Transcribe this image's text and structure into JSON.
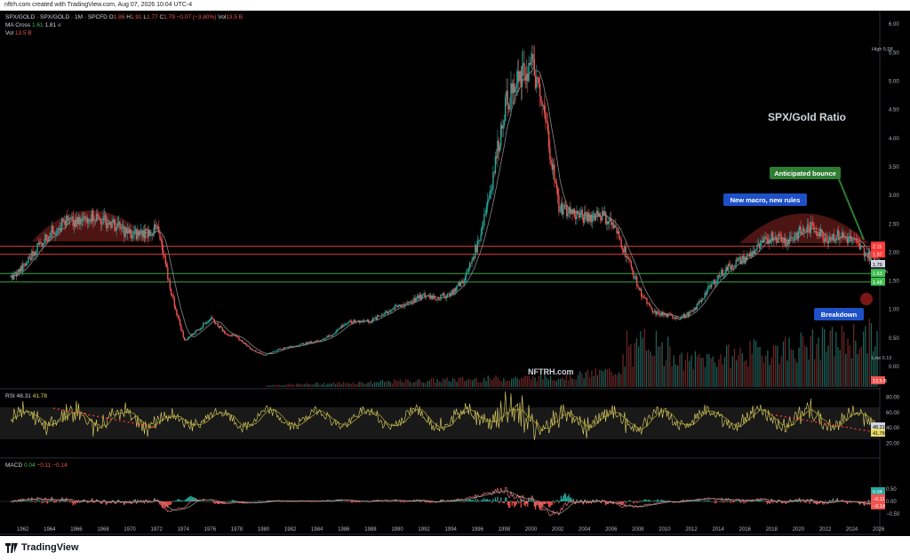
{
  "meta": {
    "created": "nftrh.com created with TradingView.com, Aug 07, 2026 10:04 UTC-4"
  },
  "legend": {
    "symbol": "SPX/GOLD · SPX/GOLD · 1M · SPCFD",
    "open_label": "O",
    "open": "1.86",
    "high_label": "H",
    "high": "1.91",
    "low_label": "L",
    "low": "1.77",
    "close_label": "C",
    "close": "1.79",
    "change": "−0.07 (−3.80%)",
    "vol_label": "Vol",
    "vol": "13.5 B",
    "ma_label": "MA Cross",
    "ma1": "1.61",
    "ma2": "1.81",
    "vol2_label": "Vol",
    "vol2": "13.5 B"
  },
  "annotations": {
    "title": "SPX/Gold Ratio",
    "watermark": "NFTRH.com",
    "anticipated": "Anticipated bounce",
    "macro": "New macro, new rules",
    "breakdown": "Breakdown"
  },
  "price_scale": {
    "ticks": [
      "6.00",
      "5.50",
      "5.00",
      "4.50",
      "4.00",
      "3.50",
      "3.00",
      "2.50",
      "2.00",
      "1.50",
      "1.00",
      "0.50",
      "0.00"
    ],
    "high_label": "High",
    "high_value": "5.58",
    "low_label": "Low",
    "low_value": "0.13",
    "badges": {
      "r1": "2.11",
      "r2": "1.97",
      "close": "1.79",
      "countdown": "24d 7h",
      "g1": "1.63",
      "g2": "1.48",
      "vol": "13.5 B"
    }
  },
  "rsi": {
    "label": "RSI",
    "v1": "48.31",
    "v2": "41.78",
    "ticks": [
      "80.00",
      "60.00",
      "40.00",
      "20.00"
    ],
    "badge1": "48.31",
    "badge2": "41.78"
  },
  "macd": {
    "label": "MACD",
    "v1": "0.04",
    "v2": "−0.11",
    "v3": "−0.14",
    "ticks": [
      "0.50",
      "0.00",
      "−0.50"
    ],
    "badge1": "0.04",
    "badge2": "−0.11",
    "badge3": "−0.14"
  },
  "x_axis": [
    "1962",
    "1964",
    "1966",
    "1968",
    "1970",
    "1972",
    "1974",
    "1976",
    "1978",
    "1980",
    "1982",
    "1984",
    "1986",
    "1988",
    "1990",
    "1992",
    "1994",
    "1996",
    "1998",
    "2000",
    "2002",
    "2004",
    "2006",
    "2008",
    "2010",
    "2012",
    "2014",
    "2016",
    "2018",
    "2020",
    "2022",
    "2024",
    "2026"
  ],
  "footer": {
    "brand": "TradingView"
  },
  "colors": {
    "up": "#26a69a",
    "down": "#ef5350",
    "ma": "#8a8a8a",
    "rsi": "#e6d96a",
    "redline": "#ff3b3b",
    "greenline": "#3fbf4f",
    "green_callout": "#2e7d32",
    "blue_callout": "#1e50c8"
  },
  "chart_data": [
    {
      "type": "line",
      "title": "SPX/Gold Ratio",
      "x": [
        1961,
        1962,
        1963,
        1964,
        1965,
        1966,
        1967,
        1968,
        1969,
        1970,
        1971,
        1972,
        1973,
        1974,
        1975,
        1976,
        1977,
        1978,
        1979,
        1980,
        1981,
        1982,
        1983,
        1984,
        1985,
        1986,
        1987,
        1988,
        1989,
        1990,
        1991,
        1992,
        1993,
        1994,
        1995,
        1996,
        1997,
        1998,
        1999,
        2000,
        2001,
        2002,
        2003,
        2004,
        2005,
        2006,
        2007,
        2008,
        2009,
        2010,
        2011,
        2012,
        2013,
        2014,
        2015,
        2016,
        2017,
        2018,
        2019,
        2020,
        2021,
        2022,
        2023,
        2024,
        2025,
        2026
      ],
      "series": [
        {
          "values": [
            1.55,
            1.75,
            2.1,
            2.35,
            2.55,
            2.5,
            2.65,
            2.55,
            2.45,
            2.3,
            2.35,
            2.4,
            1.3,
            0.45,
            0.65,
            0.85,
            0.6,
            0.5,
            0.3,
            0.2,
            0.3,
            0.35,
            0.4,
            0.45,
            0.55,
            0.75,
            0.8,
            0.8,
            0.95,
            1.05,
            1.15,
            1.25,
            1.2,
            1.3,
            1.55,
            2.2,
            3.25,
            4.6,
            5.0,
            5.3,
            4.3,
            2.8,
            2.7,
            2.6,
            2.7,
            2.5,
            2.0,
            1.35,
            0.95,
            0.9,
            0.85,
            0.95,
            1.3,
            1.6,
            1.8,
            1.9,
            2.1,
            2.3,
            2.2,
            2.35,
            2.45,
            2.25,
            2.3,
            2.2,
            1.98,
            1.79
          ]
        }
      ],
      "ylim": [
        0,
        6.0
      ],
      "reference_lines": [
        2.11,
        1.97,
        1.63,
        1.48
      ]
    }
  ]
}
